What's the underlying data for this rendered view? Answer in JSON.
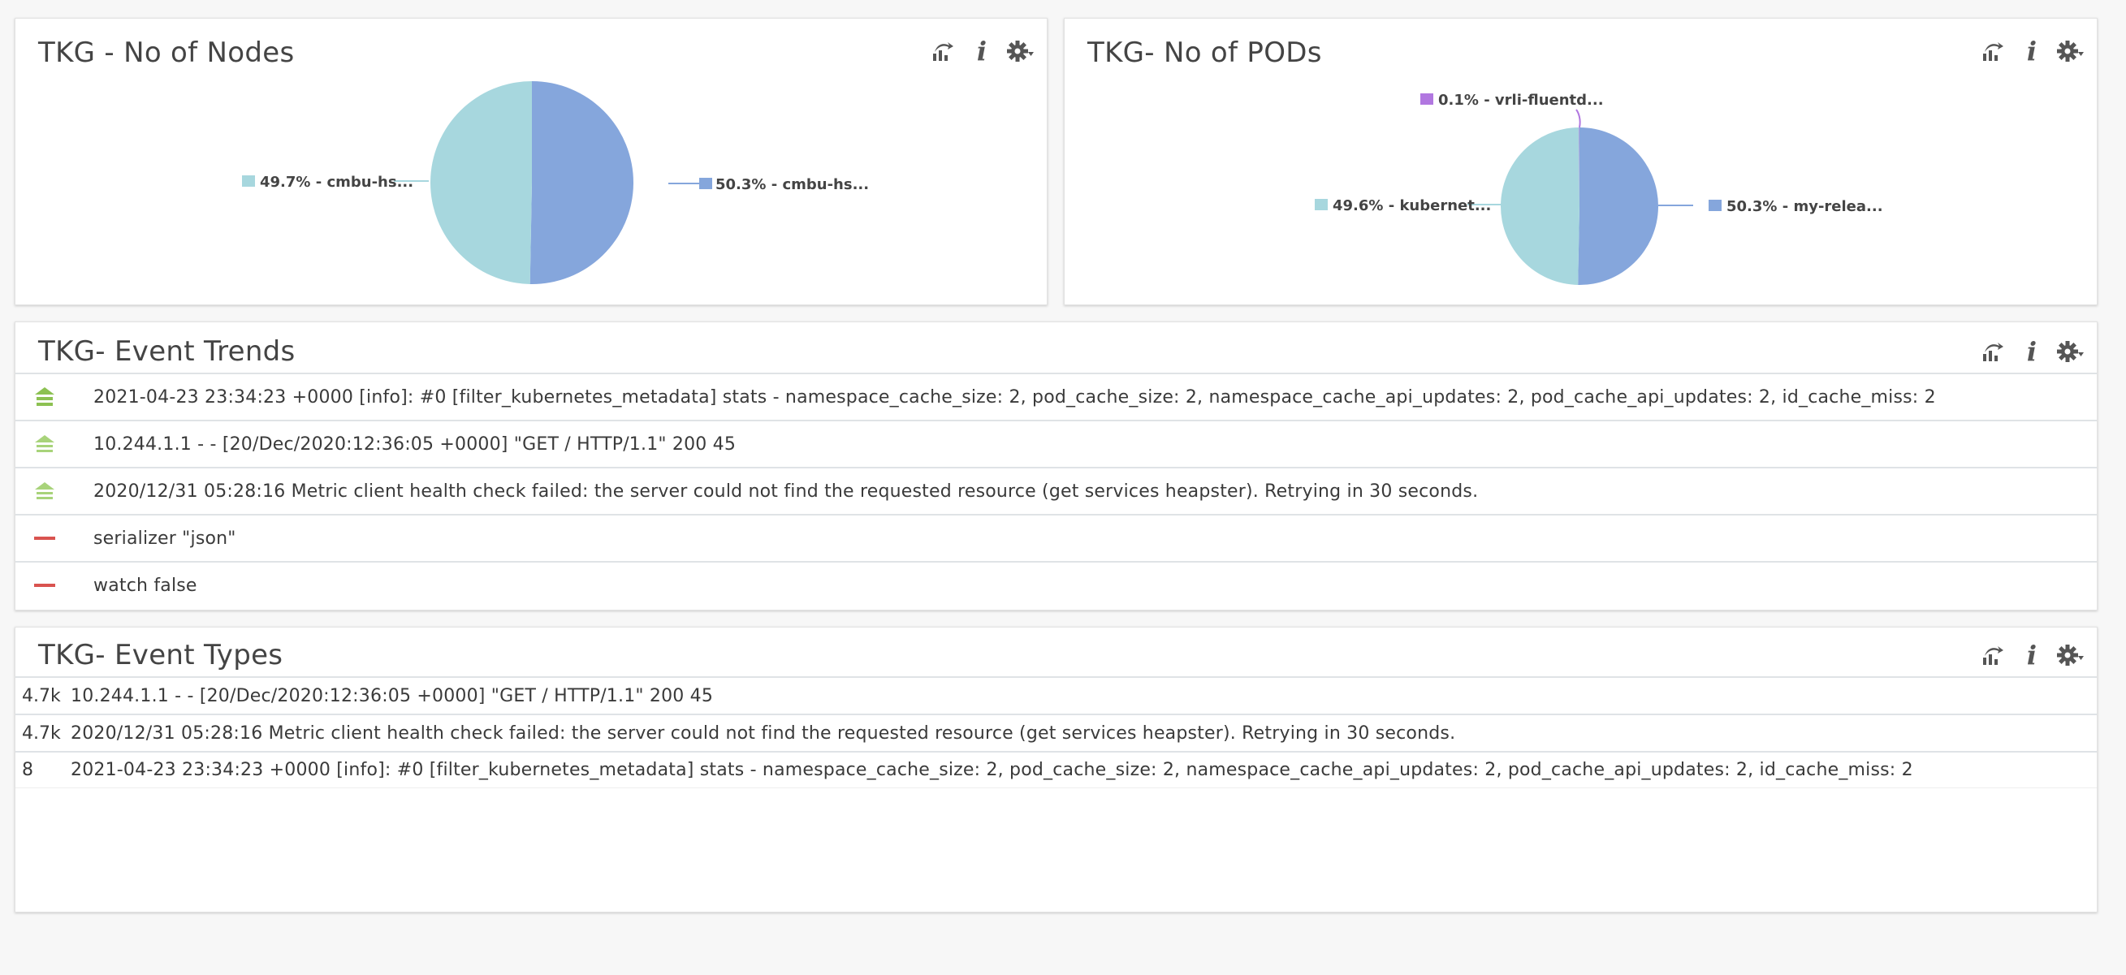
{
  "panels": {
    "nodes": {
      "title": "TKG - No of Nodes",
      "slices": [
        {
          "label": "50.3% - cmbu-hs...",
          "value": 50.3,
          "color": "#85a6dc"
        },
        {
          "label": "49.7% - cmbu-hs...",
          "value": 49.7,
          "color": "#a7d7de"
        }
      ]
    },
    "pods": {
      "title": "TKG- No of PODs",
      "slices": [
        {
          "label": "50.3% - my-relea...",
          "value": 50.3,
          "color": "#85a6dc"
        },
        {
          "label": "49.6% - kubernet...",
          "value": 49.6,
          "color": "#a7d7de"
        },
        {
          "label": "0.1% - vrli-fluentd...",
          "value": 0.1,
          "color": "#b177e0"
        }
      ]
    },
    "trends": {
      "title": "TKG- Event Trends",
      "rows": [
        {
          "text": "2021-04-23 23:34:23 +0000 [info]: #0 [filter_kubernetes_metadata] stats - namespace_cache_size: 2, pod_cache_size: 2, namespace_cache_api_updates: 2, pod_cache_api_updates: 2, id_cache_miss: 2",
          "icon": "trend-up-strong-icon"
        },
        {
          "text": "10.244.1.1 - - [20/Dec/2020:12:36:05 +0000] \"GET / HTTP/1.1\" 200 45",
          "icon": "trend-up-icon"
        },
        {
          "text": "2020/12/31 05:28:16 Metric client health check failed: the server could not find the requested resource (get services heapster). Retrying in 30 seconds.",
          "icon": "trend-up-icon"
        },
        {
          "text": "serializer \"json\"",
          "icon": "trend-flat-icon"
        },
        {
          "text": "watch false",
          "icon": "trend-flat-icon"
        }
      ]
    },
    "types": {
      "title": "TKG- Event Types",
      "rows": [
        {
          "count": "4.7k",
          "text": "10.244.1.1 - - [20/Dec/2020:12:36:05 +0000] \"GET / HTTP/1.1\" 200 45"
        },
        {
          "count": "4.7k",
          "text": "2020/12/31 05:28:16 Metric client health check failed: the server could not find the requested resource (get services heapster). Retrying in 30 seconds."
        },
        {
          "count": "8",
          "text": "2021-04-23 23:34:23 +0000 [info]: #0 [filter_kubernetes_metadata] stats - namespace_cache_size: 2, pod_cache_size: 2, namespace_cache_api_updates: 2, pod_cache_api_updates: 2, id_cache_miss: 2"
        }
      ]
    }
  },
  "colors": {
    "trend_up": "#8cc152",
    "trend_up_light": "#a8d37a",
    "trend_flat": "#d9534f",
    "toolbar_icon": "#555555"
  },
  "toolbar_icons": [
    "export-chart-icon",
    "info-icon",
    "settings-gear-icon"
  ]
}
